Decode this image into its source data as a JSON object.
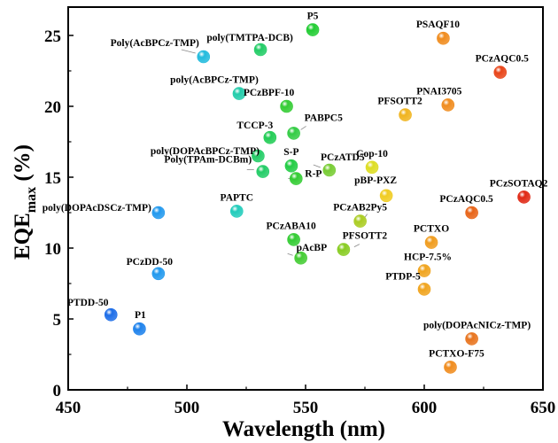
{
  "chart_data": {
    "type": "scatter",
    "xlabel": "Wavelength (nm)",
    "ylabel": {
      "main": "EQE",
      "sub": "max",
      "suffix": " (%)"
    },
    "xlim": [
      450,
      650
    ],
    "ylim": [
      0,
      27
    ],
    "xticks": [
      450,
      500,
      550,
      600,
      650
    ],
    "yticks": [
      0,
      5,
      10,
      15,
      20,
      25
    ],
    "grid": false,
    "legend": "none",
    "points": [
      {
        "label": "P5",
        "x": 553,
        "y": 25.4,
        "color": "#22cc33"
      },
      {
        "label": "poly(TMTPA-DCB)",
        "x": 531,
        "y": 24.0,
        "color": "#22cc66"
      },
      {
        "label": "Poly(AcBPCz-TMP)",
        "x": 507,
        "y": 23.5,
        "color": "#22bbdd"
      },
      {
        "label": "PSAQF10",
        "x": 608,
        "y": 24.8,
        "color": "#f08c1e"
      },
      {
        "label": "PCzAQC0.5",
        "x": 632,
        "y": 22.4,
        "color": "#e84418"
      },
      {
        "label": "poly(AcBPCz-TMP)",
        "x": 522,
        "y": 20.9,
        "color": "#22ccaa"
      },
      {
        "label": "PCzBPF-10",
        "x": 542,
        "y": 20.0,
        "color": "#33cc33"
      },
      {
        "label": "PNAI3705",
        "x": 610,
        "y": 20.1,
        "color": "#f08c1e"
      },
      {
        "label": "PFSOTT2",
        "x": 592,
        "y": 19.4,
        "color": "#f0b41e"
      },
      {
        "label": "PABPC5",
        "x": 545,
        "y": 18.1,
        "color": "#33cc44"
      },
      {
        "label": "TCCP-3",
        "x": 535,
        "y": 17.8,
        "color": "#22cc55"
      },
      {
        "label": "poly(DOPAcBPCz-TMP)",
        "x": 530,
        "y": 16.5,
        "color": "#22cc66"
      },
      {
        "label": "Poly(TPAm-DCBm)",
        "x": 532,
        "y": 15.4,
        "color": "#22cc66"
      },
      {
        "label": "S-P",
        "x": 544,
        "y": 15.8,
        "color": "#22cc44"
      },
      {
        "label": "R-P",
        "x": 546,
        "y": 14.9,
        "color": "#33cc33"
      },
      {
        "label": "PCzATD5",
        "x": 560,
        "y": 15.5,
        "color": "#77cc33"
      },
      {
        "label": "Cop-10",
        "x": 578,
        "y": 15.7,
        "color": "#dddd22"
      },
      {
        "label": "pBP-PXZ",
        "x": 584,
        "y": 13.7,
        "color": "#f0cc22"
      },
      {
        "label": "PCzSOTAQ2",
        "x": 642,
        "y": 13.6,
        "color": "#e02814"
      },
      {
        "label": "PCzAQC0.5",
        "x": 620,
        "y": 12.5,
        "color": "#e86418"
      },
      {
        "label": "poly(DOPAcDSCz-TMP)",
        "x": 488,
        "y": 12.5,
        "color": "#2299ee"
      },
      {
        "label": "PAPTC",
        "x": 521,
        "y": 12.6,
        "color": "#22ccbb"
      },
      {
        "label": "PCzAB2Py5",
        "x": 573,
        "y": 11.9,
        "color": "#aacc22"
      },
      {
        "label": "PCzABA10",
        "x": 545,
        "y": 10.6,
        "color": "#33cc33"
      },
      {
        "label": "PCTXO",
        "x": 603,
        "y": 10.4,
        "color": "#f09c1e"
      },
      {
        "label": "pAcBP",
        "x": 548,
        "y": 9.3,
        "color": "#44cc33"
      },
      {
        "label": "PFSOTT2",
        "x": 566,
        "y": 9.9,
        "color": "#88cc22"
      },
      {
        "label": "HCP-7.5%",
        "x": 600,
        "y": 8.4,
        "color": "#f0a41e"
      },
      {
        "label": "PCzDD-50",
        "x": 488,
        "y": 8.2,
        "color": "#2299ee"
      },
      {
        "label": "PTDP-5",
        "x": 600,
        "y": 7.1,
        "color": "#f0a41e"
      },
      {
        "label": "PTDD-50",
        "x": 468,
        "y": 5.3,
        "color": "#1e6ee8"
      },
      {
        "label": "P1",
        "x": 480,
        "y": 4.3,
        "color": "#1e82ec"
      },
      {
        "label": "poly(DOPAcNICz-TMP)",
        "x": 620,
        "y": 3.6,
        "color": "#e8741e"
      },
      {
        "label": "PCTXO-F75",
        "x": 611,
        "y": 1.6,
        "color": "#f08c1e"
      }
    ]
  }
}
